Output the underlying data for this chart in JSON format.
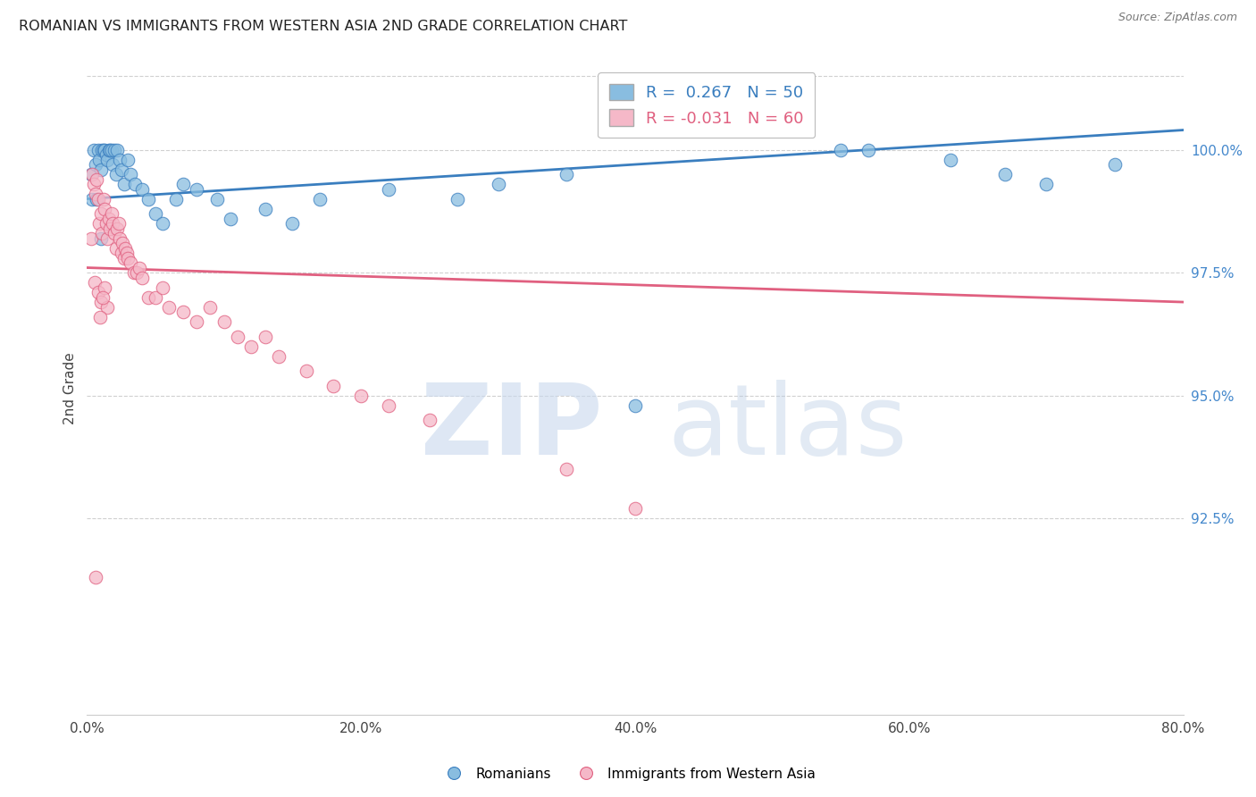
{
  "title": "ROMANIAN VS IMMIGRANTS FROM WESTERN ASIA 2ND GRADE CORRELATION CHART",
  "source": "Source: ZipAtlas.com",
  "ylabel": "2nd Grade",
  "xlim": [
    0.0,
    80.0
  ],
  "ylim": [
    88.5,
    101.8
  ],
  "yticks": [
    92.5,
    95.0,
    97.5,
    100.0
  ],
  "ytick_labels": [
    "92.5%",
    "95.0%",
    "97.5%",
    "100.0%"
  ],
  "xticks": [
    0.0,
    20.0,
    40.0,
    60.0,
    80.0
  ],
  "xtick_labels": [
    "0.0%",
    "20.0%",
    "40.0%",
    "60.0%",
    "80.0%"
  ],
  "blue_R": 0.267,
  "blue_N": 50,
  "pink_R": -0.031,
  "pink_N": 60,
  "blue_color": "#89bde0",
  "pink_color": "#f5b8c8",
  "blue_line_color": "#3a7ebf",
  "pink_line_color": "#e06080",
  "grid_color": "#d0d0d0",
  "background_color": "#ffffff",
  "blue_points_x": [
    0.3,
    0.5,
    0.6,
    0.8,
    0.9,
    1.0,
    1.1,
    1.2,
    1.3,
    1.4,
    1.5,
    1.6,
    1.7,
    1.8,
    1.9,
    2.0,
    2.1,
    2.2,
    2.4,
    2.5,
    2.7,
    3.0,
    3.2,
    3.5,
    4.0,
    4.5,
    5.0,
    5.5,
    6.5,
    7.0,
    8.0,
    9.5,
    10.5,
    13.0,
    15.0,
    17.0,
    22.0,
    27.0,
    30.0,
    35.0,
    55.0,
    57.0,
    63.0,
    67.0,
    70.0,
    75.0,
    0.4,
    0.7,
    1.05,
    40.0
  ],
  "blue_points_y": [
    99.5,
    100.0,
    99.7,
    100.0,
    99.8,
    99.6,
    100.0,
    100.0,
    100.0,
    99.9,
    99.8,
    100.0,
    100.0,
    100.0,
    99.7,
    100.0,
    99.5,
    100.0,
    99.8,
    99.6,
    99.3,
    99.8,
    99.5,
    99.3,
    99.2,
    99.0,
    98.7,
    98.5,
    99.0,
    99.3,
    99.2,
    99.0,
    98.6,
    98.8,
    98.5,
    99.0,
    99.2,
    99.0,
    99.3,
    99.5,
    100.0,
    100.0,
    99.8,
    99.5,
    99.3,
    99.7,
    99.0,
    99.0,
    98.2,
    94.8
  ],
  "pink_points_x": [
    0.3,
    0.4,
    0.5,
    0.6,
    0.7,
    0.8,
    0.9,
    1.0,
    1.1,
    1.2,
    1.3,
    1.4,
    1.5,
    1.6,
    1.7,
    1.8,
    1.9,
    2.0,
    2.1,
    2.2,
    2.3,
    2.4,
    2.5,
    2.6,
    2.7,
    2.8,
    2.9,
    3.0,
    3.2,
    3.4,
    3.6,
    3.8,
    4.0,
    4.5,
    5.0,
    5.5,
    6.0,
    7.0,
    8.0,
    9.0,
    10.0,
    11.0,
    12.0,
    13.0,
    14.0,
    16.0,
    18.0,
    20.0,
    22.0,
    25.0,
    35.0,
    40.0,
    0.55,
    0.85,
    1.05,
    1.25,
    1.45,
    0.65,
    0.95,
    1.15
  ],
  "pink_points_y": [
    98.2,
    99.5,
    99.3,
    99.1,
    99.4,
    99.0,
    98.5,
    98.7,
    98.3,
    99.0,
    98.8,
    98.5,
    98.2,
    98.6,
    98.4,
    98.7,
    98.5,
    98.3,
    98.0,
    98.4,
    98.5,
    98.2,
    97.9,
    98.1,
    97.8,
    98.0,
    97.9,
    97.8,
    97.7,
    97.5,
    97.5,
    97.6,
    97.4,
    97.0,
    97.0,
    97.2,
    96.8,
    96.7,
    96.5,
    96.8,
    96.5,
    96.2,
    96.0,
    96.2,
    95.8,
    95.5,
    95.2,
    95.0,
    94.8,
    94.5,
    93.5,
    92.7,
    97.3,
    97.1,
    96.9,
    97.2,
    96.8,
    91.3,
    96.6,
    97.0
  ],
  "blue_line_x0": 0.0,
  "blue_line_x1": 80.0,
  "blue_line_y0": 99.0,
  "blue_line_y1": 100.4,
  "pink_line_x0": 0.0,
  "pink_line_x1": 80.0,
  "pink_line_y0": 97.6,
  "pink_line_y1": 96.9
}
